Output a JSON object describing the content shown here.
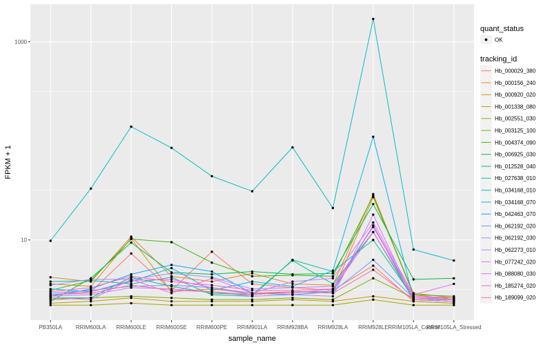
{
  "chart_data": {
    "type": "line",
    "title": "",
    "xlabel": "sample_name",
    "ylabel": "FPKM + 1",
    "y_scale": "log10",
    "ylim": [
      1.55,
      2400
    ],
    "y_ticks": [
      10,
      1000
    ],
    "y_tick_labels": [
      "10",
      "1000"
    ],
    "categories": [
      "PB350LA",
      "RRIM600LA",
      "RRIM600LE",
      "RRIM600SE",
      "RRIM600PE",
      "RRIM901LA",
      "RRIM928BA",
      "RRIM928LA",
      "RRIM928LE",
      "RRIM105LA_Control",
      "RRIM105LA_Stressed"
    ],
    "x_tick_labels": [
      "PB350LA",
      "RRIM600LA",
      "RRIM600LE",
      "RRIM600SE",
      "RRIM600PE",
      "RRIM901LA",
      "RRIM928BA",
      "RRIM928LA",
      "RRIM928LE",
      "RRIM105LA_Control",
      "RRIM105LA_Stressed"
    ],
    "grid": true,
    "panel_background": "#ebebeb",
    "legend_placement": "right",
    "point_legend": {
      "title": "quant_status",
      "entries": [
        "OK"
      ]
    },
    "legend_title": "tracking_id",
    "series": [
      {
        "name": "Hb_000029_380",
        "color": "#F8766D",
        "values": [
          2.8,
          3.0,
          7.3,
          3.1,
          7.6,
          3.6,
          3.3,
          3.1,
          5.5,
          2.4,
          2.3
        ]
      },
      {
        "name": "Hb_000156_240",
        "color": "#EA8331",
        "values": [
          4.2,
          3.8,
          10.8,
          4.3,
          3.8,
          4.6,
          3.6,
          3.5,
          29.0,
          2.8,
          2.5
        ]
      },
      {
        "name": "Hb_000920_020",
        "color": "#D89000",
        "values": [
          3.6,
          3.4,
          10.4,
          3.0,
          3.2,
          2.9,
          3.0,
          3.0,
          27.0,
          2.9,
          2.6
        ]
      },
      {
        "name": "Hb_001338_080",
        "color": "#C09B00",
        "values": [
          2.3,
          2.4,
          2.6,
          2.4,
          2.4,
          2.4,
          2.5,
          2.4,
          2.7,
          2.4,
          2.3
        ]
      },
      {
        "name": "Hb_002551_030",
        "color": "#A3A500",
        "values": [
          2.2,
          2.2,
          2.3,
          2.2,
          2.2,
          2.2,
          2.2,
          2.2,
          2.5,
          2.2,
          2.2
        ]
      },
      {
        "name": "Hb_003125_100",
        "color": "#7CAE00",
        "values": [
          2.5,
          2.6,
          2.7,
          2.6,
          2.5,
          2.5,
          2.6,
          2.5,
          4.1,
          2.6,
          2.5
        ]
      },
      {
        "name": "Hb_004374_090",
        "color": "#39B600",
        "values": [
          3.1,
          3.9,
          10.2,
          9.5,
          5.9,
          4.3,
          4.4,
          4.3,
          28.0,
          2.8,
          2.7
        ]
      },
      {
        "name": "Hb_006925_030",
        "color": "#00BB4E",
        "values": [
          2.4,
          4.1,
          9.4,
          4.7,
          4.5,
          4.8,
          4.5,
          4.6,
          23.0,
          4.0,
          4.1
        ]
      },
      {
        "name": "Hb_012528_040",
        "color": "#00BF7D",
        "values": [
          2.6,
          2.6,
          4.2,
          3.4,
          2.9,
          2.8,
          6.2,
          3.6,
          12.0,
          2.5,
          2.4
        ]
      },
      {
        "name": "Hb_027638_010",
        "color": "#00C1A3",
        "values": [
          3.8,
          3.9,
          3.6,
          4.2,
          2.8,
          2.7,
          6.3,
          4.8,
          10.0,
          2.6,
          2.5
        ]
      },
      {
        "name": "Hb_034168_010",
        "color": "#00BFC4",
        "values": [
          9.8,
          33.0,
          139.0,
          85.0,
          44.0,
          31.0,
          86.0,
          21.0,
          1700.0,
          8.0,
          6.2
        ]
      },
      {
        "name": "Hb_034168_070",
        "color": "#00B8E7",
        "values": [
          3.2,
          3.0,
          3.8,
          5.2,
          3.1,
          3.8,
          3.4,
          4.9,
          110.0,
          2.5,
          2.4
        ]
      },
      {
        "name": "Hb_042463_070",
        "color": "#00A9FF",
        "values": [
          2.7,
          3.2,
          4.5,
          5.6,
          4.8,
          2.9,
          2.8,
          3.0,
          14.0,
          2.5,
          2.4
        ]
      },
      {
        "name": "Hb_062192_020",
        "color": "#619CFF",
        "values": [
          2.9,
          3.1,
          3.4,
          3.5,
          3.3,
          2.8,
          3.0,
          3.0,
          6.3,
          2.6,
          2.5
        ]
      },
      {
        "name": "Hb_062192_030",
        "color": "#9F8CFF",
        "values": [
          3.5,
          4.0,
          4.0,
          4.6,
          4.2,
          3.2,
          3.3,
          3.4,
          13.5,
          2.7,
          2.6
        ]
      },
      {
        "name": "Hb_062273_010",
        "color": "#C77CFF",
        "values": [
          2.7,
          2.8,
          3.3,
          3.2,
          3.0,
          2.7,
          2.8,
          2.7,
          18.0,
          2.5,
          2.4
        ]
      },
      {
        "name": "Hb_077242_020",
        "color": "#E36EF6",
        "values": [
          2.6,
          2.5,
          4.0,
          2.9,
          4.1,
          2.9,
          3.8,
          4.1,
          15.0,
          2.8,
          3.6
        ]
      },
      {
        "name": "Hb_088080_030",
        "color": "#F564E3",
        "values": [
          2.8,
          3.0,
          3.9,
          4.0,
          3.3,
          2.9,
          2.9,
          3.2,
          14.0,
          2.7,
          2.6
        ]
      },
      {
        "name": "Hb_185274_020",
        "color": "#FF61C3",
        "values": [
          3.0,
          3.3,
          4.3,
          3.8,
          3.5,
          3.1,
          3.1,
          3.2,
          12.0,
          2.6,
          2.6
        ]
      },
      {
        "name": "Hb_189099_020",
        "color": "#FF6C91",
        "values": [
          2.8,
          2.9,
          3.5,
          3.1,
          3.0,
          2.8,
          3.0,
          2.9,
          5.0,
          2.5,
          2.5
        ]
      }
    ]
  }
}
